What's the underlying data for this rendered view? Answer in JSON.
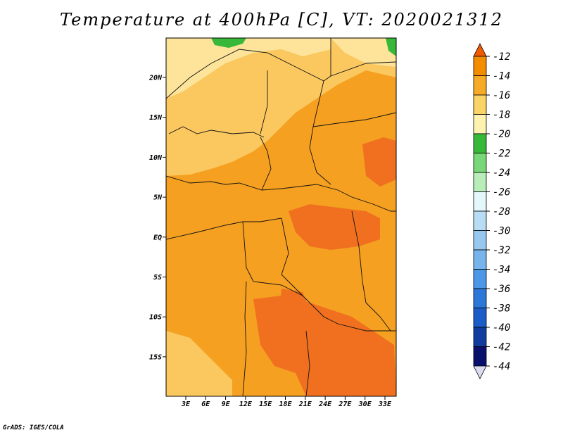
{
  "title": "Temperature at 400hPa [C], VT: 2020021312",
  "credit": "GrADS: IGES/COLA",
  "map": {
    "lat_labels": [
      "20N",
      "15N",
      "10N",
      "5N",
      "EQ",
      "5S",
      "10S",
      "15S"
    ],
    "lon_labels": [
      "3E",
      "6E",
      "9E",
      "12E",
      "15E",
      "18E",
      "21E",
      "24E",
      "27E",
      "30E",
      "33E"
    ]
  },
  "colorbar": {
    "levels": [
      "-12",
      "-14",
      "-16",
      "-18",
      "-20",
      "-22",
      "-24",
      "-26",
      "-28",
      "-30",
      "-32",
      "-34",
      "-36",
      "-38",
      "-40",
      "-42",
      "-44"
    ],
    "colors": [
      "#f05a00",
      "#f48c00",
      "#f7a928",
      "#fbd468",
      "#fdf2b0",
      "#38b838",
      "#78d878",
      "#b8ecb8",
      "#e4f7fa",
      "#b8dcf4",
      "#98c8f0",
      "#78b4ec",
      "#4c98e8",
      "#2c78d8",
      "#1c5cc8",
      "#103ca0",
      "#08106c",
      "#dcdcf0"
    ]
  },
  "colors": {
    "warm_dominant": "#f5a020",
    "warm_light": "#fbc860",
    "warm_hot": "#f07020",
    "green": "#38b838"
  }
}
